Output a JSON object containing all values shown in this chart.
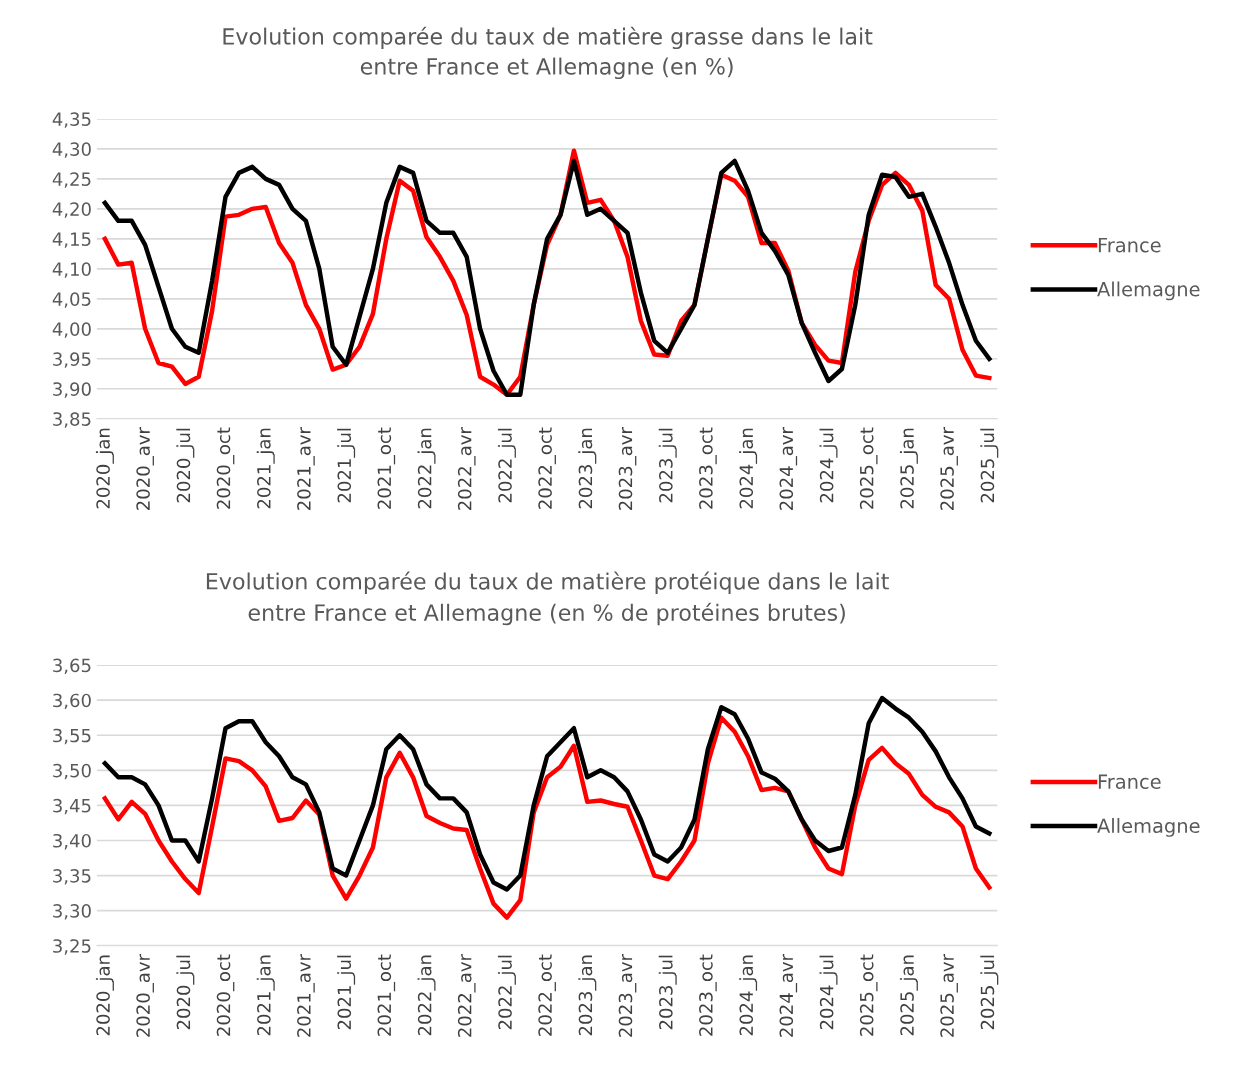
{
  "chart_data": [
    {
      "type": "line",
      "title": "Evolution comparée du taux de matière grasse dans le lait\nentre France et Allemagne (en %)",
      "categories": [
        "2020_jan",
        null,
        null,
        "2020_avr",
        null,
        null,
        "2020_jul",
        null,
        null,
        "2020_oct",
        null,
        null,
        "2021_jan",
        null,
        null,
        "2021_avr",
        null,
        null,
        "2021_jul",
        null,
        null,
        "2021_oct",
        null,
        null,
        "2022_jan",
        null,
        null,
        "2022_avr",
        null,
        null,
        "2022_jul",
        null,
        null,
        "2022_oct",
        null,
        null,
        "2023_jan",
        null,
        null,
        "2023_avr",
        null,
        null,
        "2023_jul",
        null,
        null,
        "2023_oct",
        null,
        null,
        "2024_jan",
        null,
        null,
        "2024_avr",
        null,
        null,
        "2024_jul",
        null,
        null,
        "2025_oct",
        null,
        null,
        "2025_jan",
        null,
        null,
        "2025_avr",
        null,
        null,
        "2025_jul"
      ],
      "series": [
        {
          "name": "France",
          "color": "#ff0000",
          "values": [
            4.15,
            4.107,
            4.11,
            4.0,
            3.943,
            3.937,
            3.908,
            3.92,
            4.03,
            4.187,
            4.19,
            4.2,
            4.203,
            4.143,
            4.11,
            4.04,
            4.0,
            3.932,
            3.94,
            3.97,
            4.025,
            4.15,
            4.247,
            4.23,
            4.153,
            4.12,
            4.08,
            4.023,
            3.92,
            3.907,
            3.89,
            3.92,
            4.04,
            4.14,
            4.19,
            4.297,
            4.21,
            4.215,
            4.18,
            4.12,
            4.013,
            3.957,
            3.955,
            4.013,
            4.04,
            4.15,
            4.257,
            4.247,
            4.22,
            4.143,
            4.143,
            4.097,
            4.01,
            3.973,
            3.947,
            3.943,
            4.095,
            4.18,
            4.24,
            4.26,
            4.24,
            4.197,
            4.073,
            4.05,
            3.965,
            3.922,
            3.918
          ]
        },
        {
          "name": "Allemagne",
          "color": "#000000",
          "values": [
            4.21,
            4.18,
            4.18,
            4.14,
            4.07,
            4.0,
            3.97,
            3.96,
            4.08,
            4.22,
            4.26,
            4.27,
            4.25,
            4.24,
            4.2,
            4.18,
            4.1,
            3.97,
            3.94,
            4.02,
            4.1,
            4.21,
            4.27,
            4.26,
            4.18,
            4.16,
            4.16,
            4.12,
            4.0,
            3.93,
            3.89,
            3.89,
            4.04,
            4.15,
            4.19,
            4.28,
            4.19,
            4.2,
            4.18,
            4.16,
            4.06,
            3.98,
            3.96,
            4.0,
            4.04,
            4.15,
            4.26,
            4.28,
            4.23,
            4.16,
            4.13,
            4.09,
            4.01,
            3.96,
            3.913,
            3.933,
            4.04,
            4.19,
            4.257,
            4.253,
            4.22,
            4.225,
            4.17,
            4.11,
            4.04,
            3.98,
            3.95
          ]
        }
      ],
      "ylim": [
        3.85,
        4.35
      ],
      "yticks": [
        {
          "value": 3.85,
          "label": "3,85"
        },
        {
          "value": 3.9,
          "label": "3,90"
        },
        {
          "value": 3.95,
          "label": "3,95"
        },
        {
          "value": 4.0,
          "label": "4,00"
        },
        {
          "value": 4.05,
          "label": "4,05"
        },
        {
          "value": 4.1,
          "label": "4,10"
        },
        {
          "value": 4.15,
          "label": "4,15"
        },
        {
          "value": 4.2,
          "label": "4,20"
        },
        {
          "value": 4.25,
          "label": "4,25"
        },
        {
          "value": 4.3,
          "label": "4,30"
        },
        {
          "value": 4.35,
          "label": "4,35"
        }
      ],
      "grid": "y",
      "legend": "right",
      "marker": "none",
      "line_style": "solid"
    },
    {
      "type": "line",
      "title": "Evolution comparée du taux de matière protéique dans le lait\nentre France et Allemagne (en % de protéines brutes)",
      "categories": [
        "2020_jan",
        null,
        null,
        "2020_avr",
        null,
        null,
        "2020_jul",
        null,
        null,
        "2020_oct",
        null,
        null,
        "2021_jan",
        null,
        null,
        "2021_avr",
        null,
        null,
        "2021_jul",
        null,
        null,
        "2021_oct",
        null,
        null,
        "2022_jan",
        null,
        null,
        "2022_avr",
        null,
        null,
        "2022_jul",
        null,
        null,
        "2022_oct",
        null,
        null,
        "2023_jan",
        null,
        null,
        "2023_avr",
        null,
        null,
        "2023_jul",
        null,
        null,
        "2023_oct",
        null,
        null,
        "2024_jan",
        null,
        null,
        "2024_avr",
        null,
        null,
        "2024_jul",
        null,
        null,
        "2025_oct",
        null,
        null,
        "2025_jan",
        null,
        null,
        "2025_avr",
        null,
        null,
        "2025_jul"
      ],
      "series": [
        {
          "name": "France",
          "color": "#ff0000",
          "values": [
            3.46,
            3.43,
            3.455,
            3.438,
            3.4,
            3.37,
            3.345,
            3.325,
            3.42,
            3.517,
            3.513,
            3.5,
            3.477,
            3.428,
            3.432,
            3.457,
            3.437,
            3.35,
            3.317,
            3.35,
            3.39,
            3.49,
            3.525,
            3.49,
            3.435,
            3.425,
            3.417,
            3.415,
            3.36,
            3.31,
            3.29,
            3.315,
            3.44,
            3.49,
            3.505,
            3.535,
            3.455,
            3.457,
            3.452,
            3.448,
            3.4,
            3.35,
            3.345,
            3.37,
            3.4,
            3.51,
            3.575,
            3.555,
            3.52,
            3.472,
            3.475,
            3.47,
            3.43,
            3.39,
            3.36,
            3.352,
            3.45,
            3.515,
            3.532,
            3.51,
            3.495,
            3.465,
            3.448,
            3.44,
            3.42,
            3.36,
            3.333
          ]
        },
        {
          "name": "Allemagne",
          "color": "#000000",
          "values": [
            3.51,
            3.49,
            3.49,
            3.48,
            3.45,
            3.4,
            3.4,
            3.37,
            3.46,
            3.56,
            3.57,
            3.57,
            3.54,
            3.52,
            3.49,
            3.48,
            3.44,
            3.36,
            3.35,
            3.4,
            3.45,
            3.53,
            3.55,
            3.53,
            3.48,
            3.46,
            3.46,
            3.44,
            3.38,
            3.34,
            3.33,
            3.35,
            3.45,
            3.52,
            3.54,
            3.56,
            3.49,
            3.5,
            3.49,
            3.47,
            3.43,
            3.38,
            3.37,
            3.39,
            3.43,
            3.53,
            3.59,
            3.58,
            3.545,
            3.497,
            3.488,
            3.47,
            3.43,
            3.4,
            3.385,
            3.39,
            3.465,
            3.567,
            3.603,
            3.588,
            3.575,
            3.555,
            3.527,
            3.49,
            3.46,
            3.42,
            3.41
          ]
        }
      ],
      "ylim": [
        3.25,
        3.65
      ],
      "yticks": [
        {
          "value": 3.25,
          "label": "3,25"
        },
        {
          "value": 3.3,
          "label": "3,30"
        },
        {
          "value": 3.35,
          "label": "3,35"
        },
        {
          "value": 3.4,
          "label": "3,40"
        },
        {
          "value": 3.45,
          "label": "3,45"
        },
        {
          "value": 3.5,
          "label": "3,50"
        },
        {
          "value": 3.55,
          "label": "3,55"
        },
        {
          "value": 3.6,
          "label": "3,60"
        },
        {
          "value": 3.65,
          "label": "3,65"
        }
      ],
      "grid": "y",
      "legend": "right",
      "marker": "none",
      "line_style": "solid"
    }
  ]
}
